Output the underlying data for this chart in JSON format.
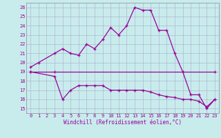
{
  "xlabel": "Windchill (Refroidissement éolien,°C)",
  "bg_color": "#c8ecec",
  "grid_color": "#aaaacc",
  "line_color": "#990099",
  "xlim_min": -0.5,
  "xlim_max": 23.5,
  "ylim_min": 14.5,
  "ylim_max": 26.5,
  "xticks": [
    0,
    1,
    2,
    3,
    4,
    5,
    6,
    7,
    8,
    9,
    10,
    11,
    12,
    13,
    14,
    15,
    16,
    17,
    18,
    19,
    20,
    21,
    22,
    23
  ],
  "yticks": [
    15,
    16,
    17,
    18,
    19,
    20,
    21,
    22,
    23,
    24,
    25,
    26
  ],
  "series1_x": [
    0,
    1,
    3,
    4,
    5,
    6,
    7,
    8,
    9,
    10,
    11,
    12,
    13,
    14,
    15,
    16,
    17,
    18,
    19,
    20,
    21,
    22,
    23
  ],
  "series1_y": [
    19.5,
    20.0,
    21.0,
    21.5,
    21.0,
    20.8,
    22.0,
    21.5,
    22.5,
    23.8,
    23.0,
    24.0,
    26.0,
    25.7,
    25.7,
    23.5,
    23.5,
    21.0,
    19.0,
    16.5,
    16.5,
    15.0,
    16.0
  ],
  "series2_x": [
    0,
    3,
    23
  ],
  "series2_y": [
    19.0,
    19.0,
    19.0
  ],
  "series3_x": [
    0,
    3,
    4,
    5,
    6,
    7,
    8,
    9,
    10,
    11,
    12,
    13,
    14,
    15,
    16,
    17,
    18,
    19,
    20,
    21,
    22,
    23
  ],
  "series3_y": [
    19.0,
    18.5,
    16.0,
    17.0,
    17.5,
    17.5,
    17.5,
    17.5,
    17.0,
    17.0,
    17.0,
    17.0,
    17.0,
    16.8,
    16.5,
    16.3,
    16.2,
    16.0,
    16.0,
    15.8,
    15.2,
    16.0
  ],
  "line_width": 0.9,
  "marker_size": 3.0,
  "tick_fontsize": 5.0,
  "xlabel_fontsize": 5.5
}
